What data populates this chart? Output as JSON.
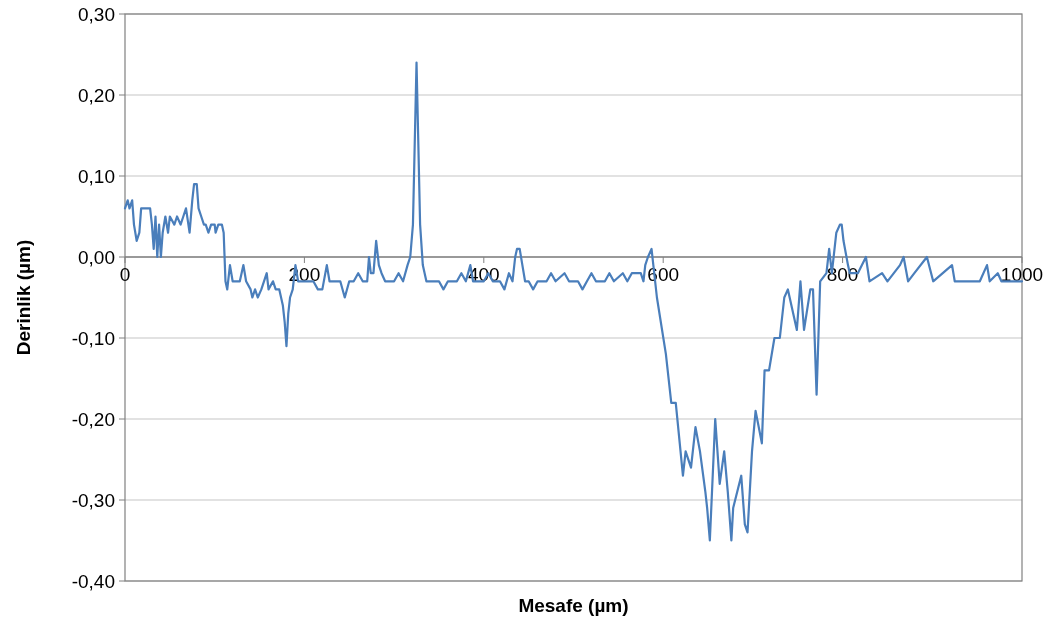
{
  "chart_data": {
    "type": "line",
    "xlabel": "Mesafe (µm)",
    "ylabel": "Derinlik (µm)",
    "xlim": [
      0,
      1000
    ],
    "xticks": [
      0,
      200,
      400,
      600,
      800,
      1000
    ],
    "ylim": [
      -0.4,
      0.3
    ],
    "yticks": [
      {
        "value": -0.4,
        "label": "-0,40"
      },
      {
        "value": -0.3,
        "label": "-0,30"
      },
      {
        "value": -0.2,
        "label": "-0,20"
      },
      {
        "value": -0.1,
        "label": "-0,10"
      },
      {
        "value": 0,
        "label": "0,00"
      },
      {
        "value": 0.1,
        "label": "0,10"
      },
      {
        "value": 0.2,
        "label": "0,20"
      },
      {
        "value": 0.3,
        "label": "0,30"
      }
    ],
    "grid": "y",
    "marker": "none",
    "line_style": "solid",
    "series": [
      {
        "color": "#4a7ebb",
        "x": [
          0,
          3,
          5,
          8,
          10,
          13,
          16,
          18,
          28,
          30,
          32,
          34,
          36,
          38,
          40,
          42,
          45,
          48,
          50,
          55,
          58,
          62,
          65,
          68,
          72,
          75,
          77,
          80,
          82,
          85,
          88,
          90,
          93,
          96,
          100,
          101,
          104,
          108,
          110,
          112,
          114,
          117,
          120,
          125,
          128,
          132,
          135,
          140,
          142,
          145,
          148,
          152,
          158,
          160,
          165,
          168,
          172,
          176,
          178,
          180,
          182,
          184,
          187,
          190,
          193,
          197,
          205,
          210,
          215,
          220,
          225,
          228,
          235,
          240,
          245,
          250,
          255,
          260,
          265,
          270,
          272,
          274,
          277,
          280,
          283,
          286,
          290,
          300,
          305,
          310,
          315,
          318,
          321,
          323,
          325,
          327,
          329,
          332,
          336,
          350,
          355,
          360,
          370,
          375,
          380,
          385,
          388,
          392,
          400,
          405,
          410,
          418,
          423,
          428,
          432,
          435,
          437,
          440,
          443,
          446,
          450,
          455,
          460,
          470,
          475,
          480,
          490,
          495,
          505,
          510,
          515,
          520,
          525,
          535,
          540,
          545,
          555,
          560,
          565,
          575,
          578,
          580,
          583,
          587,
          593,
          603,
          609,
          614,
          622,
          625,
          631,
          636,
          641,
          647,
          649,
          652,
          658,
          663,
          668,
          672,
          676,
          678,
          687,
          691,
          694,
          699,
          703,
          710,
          713,
          718,
          724,
          730,
          735,
          739,
          749,
          753,
          757,
          764,
          767,
          771,
          775,
          782,
          785,
          788,
          793,
          797,
          799,
          801,
          806,
          808,
          817,
          826,
          830,
          844,
          850,
          864,
          868,
          873,
          880,
          894,
          901,
          922,
          925,
          953,
          961,
          964,
          973,
          977,
          1000
        ],
        "values": [
          0.06,
          0.07,
          0.06,
          0.07,
          0.04,
          0.02,
          0.03,
          0.06,
          0.06,
          0.04,
          0.01,
          0.05,
          0.0,
          0.04,
          0.0,
          0.03,
          0.05,
          0.03,
          0.05,
          0.04,
          0.05,
          0.04,
          0.05,
          0.06,
          0.03,
          0.07,
          0.09,
          0.09,
          0.06,
          0.05,
          0.04,
          0.04,
          0.03,
          0.04,
          0.04,
          0.03,
          0.04,
          0.04,
          0.03,
          -0.03,
          -0.04,
          -0.01,
          -0.03,
          -0.03,
          -0.03,
          -0.01,
          -0.03,
          -0.04,
          -0.05,
          -0.04,
          -0.05,
          -0.04,
          -0.02,
          -0.04,
          -0.03,
          -0.04,
          -0.04,
          -0.06,
          -0.08,
          -0.11,
          -0.07,
          -0.05,
          -0.04,
          -0.01,
          -0.03,
          -0.03,
          -0.03,
          -0.03,
          -0.04,
          -0.04,
          -0.01,
          -0.03,
          -0.03,
          -0.03,
          -0.05,
          -0.03,
          -0.03,
          -0.02,
          -0.03,
          -0.03,
          0.0,
          -0.02,
          -0.02,
          0.02,
          -0.01,
          -0.02,
          -0.03,
          -0.03,
          -0.02,
          -0.03,
          -0.01,
          0.0,
          0.04,
          0.14,
          0.24,
          0.14,
          0.04,
          -0.01,
          -0.03,
          -0.03,
          -0.04,
          -0.03,
          -0.03,
          -0.02,
          -0.03,
          -0.01,
          -0.03,
          -0.03,
          -0.03,
          -0.02,
          -0.03,
          -0.03,
          -0.04,
          -0.02,
          -0.03,
          0.0,
          0.01,
          0.01,
          -0.01,
          -0.03,
          -0.03,
          -0.04,
          -0.03,
          -0.03,
          -0.02,
          -0.03,
          -0.02,
          -0.03,
          -0.03,
          -0.04,
          -0.03,
          -0.02,
          -0.03,
          -0.03,
          -0.02,
          -0.03,
          -0.02,
          -0.03,
          -0.02,
          -0.02,
          -0.03,
          -0.01,
          0.0,
          0.01,
          -0.05,
          -0.12,
          -0.18,
          -0.18,
          -0.27,
          -0.24,
          -0.26,
          -0.21,
          -0.24,
          -0.29,
          -0.31,
          -0.35,
          -0.2,
          -0.28,
          -0.24,
          -0.29,
          -0.35,
          -0.31,
          -0.27,
          -0.33,
          -0.34,
          -0.24,
          -0.19,
          -0.23,
          -0.14,
          -0.14,
          -0.1,
          -0.1,
          -0.05,
          -0.04,
          -0.09,
          -0.03,
          -0.09,
          -0.04,
          -0.04,
          -0.17,
          -0.03,
          -0.02,
          0.01,
          -0.02,
          0.03,
          0.04,
          0.04,
          0.02,
          -0.01,
          -0.02,
          -0.02,
          0.0,
          -0.03,
          -0.02,
          -0.03,
          -0.01,
          0.0,
          -0.03,
          -0.02,
          0.0,
          -0.03,
          -0.01,
          -0.03,
          -0.03,
          -0.01,
          -0.03,
          -0.02,
          -0.03,
          -0.03
        ]
      }
    ]
  }
}
